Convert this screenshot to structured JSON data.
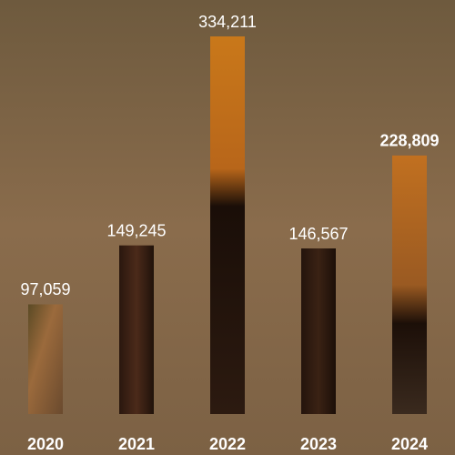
{
  "chart_data": {
    "type": "bar",
    "categories": [
      "2020",
      "2021",
      "2022",
      "2023",
      "2024"
    ],
    "values": [
      97059,
      149245,
      334211,
      146567,
      228809
    ],
    "value_labels": [
      "97,059",
      "149,245",
      "334,211",
      "146,567",
      "228,809"
    ]
  }
}
